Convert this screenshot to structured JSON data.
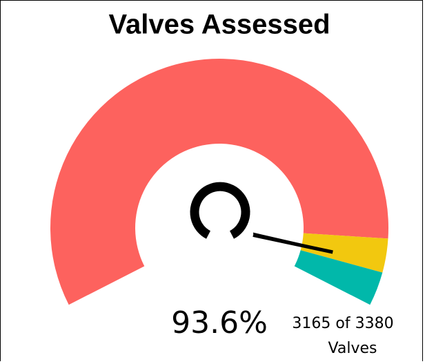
{
  "chart_data": {
    "type": "gauge",
    "title": "Valves Assessed",
    "range": [
      0,
      100
    ],
    "bands": [
      {
        "from": 0,
        "to": 90,
        "color": "#fd625e"
      },
      {
        "from": 90,
        "to": 95,
        "color": "#f2c80f"
      },
      {
        "from": 95,
        "to": 100,
        "color": "#01b8aa"
      }
    ],
    "value": 93.6,
    "value_label": "93.6%",
    "detail_lines": [
      "3165 of 3380",
      "Valves"
    ],
    "needle_color": "#000000"
  }
}
